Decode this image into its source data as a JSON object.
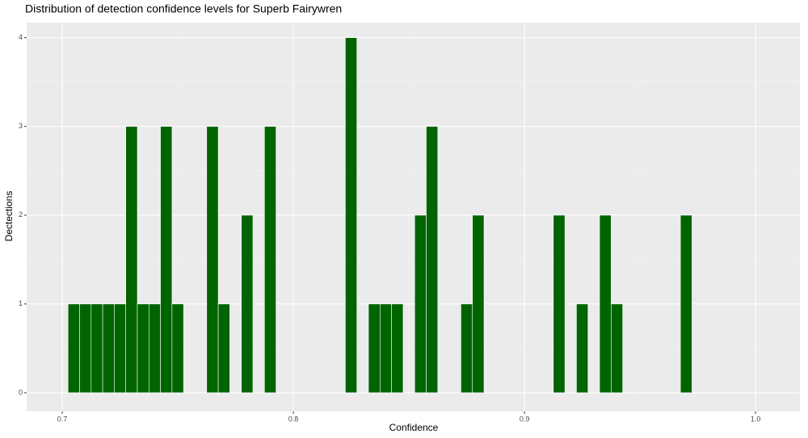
{
  "chart_data": {
    "type": "histogram",
    "title": "Distribution of detection confidence levels for Superb Fairywren",
    "xlabel": "Confidence",
    "ylabel": "Dectections",
    "bins": [
      0.7025,
      0.7075,
      0.7125,
      0.7175,
      0.7225,
      0.7275,
      0.7325,
      0.7375,
      0.7425,
      0.7475,
      0.7525,
      0.7575,
      0.7625,
      0.7675,
      0.7725,
      0.7775,
      0.7825,
      0.7875,
      0.7925,
      0.7975,
      0.8025,
      0.8075,
      0.8125,
      0.8175,
      0.8225,
      0.8275,
      0.8325,
      0.8375,
      0.8425,
      0.8475,
      0.8525,
      0.8575,
      0.8625,
      0.8675,
      0.8725,
      0.8775,
      0.8825,
      0.8875,
      0.8925,
      0.8975,
      0.9025,
      0.9075,
      0.9125,
      0.9175,
      0.9225,
      0.9275,
      0.9325,
      0.9375,
      0.9425,
      0.9475,
      0.9525,
      0.9575,
      0.9625,
      0.9675,
      0.9725
    ],
    "values": [
      1,
      1,
      1,
      1,
      1,
      3,
      1,
      1,
      3,
      1,
      0,
      0,
      3,
      1,
      0,
      2,
      0,
      3,
      0,
      0,
      0,
      0,
      0,
      0,
      4,
      0,
      1,
      1,
      1,
      0,
      2,
      3,
      0,
      0,
      1,
      2,
      0,
      0,
      0,
      0,
      0,
      0,
      2,
      0,
      1,
      0,
      2,
      1,
      0,
      0,
      0,
      0,
      0,
      2
    ],
    "color": "#006400",
    "xlim": [
      0.6846,
      1.0192
    ],
    "ylim": [
      -0.21,
      4.17
    ],
    "xticks": [
      0.7,
      0.8,
      0.9,
      {
        "value": 1,
        "label": "1.0"
      }
    ],
    "yticks": [
      0,
      1,
      2,
      3,
      4
    ],
    "grid": true
  }
}
